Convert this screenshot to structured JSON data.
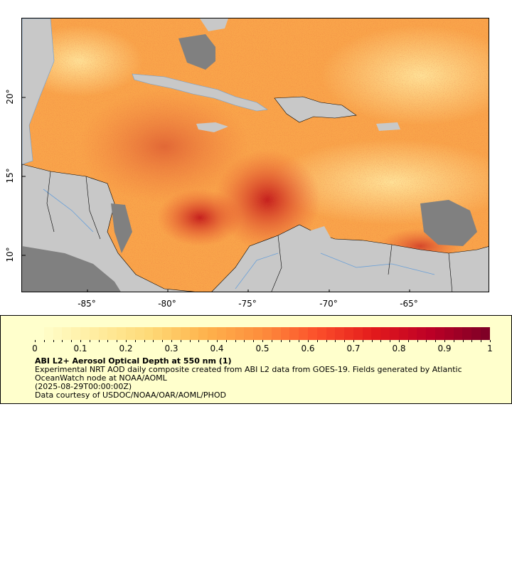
{
  "map": {
    "x_ticks": [
      "-85°",
      "-80°",
      "-75°",
      "-70°",
      "-65°"
    ],
    "y_ticks": [
      "20°",
      "15°",
      "10°"
    ],
    "colors": {
      "land": "#c8c8c8",
      "no_data": "#808080",
      "rivers": "#6aa0d8",
      "borders": "#000000"
    }
  },
  "legend": {
    "ticks": [
      "0",
      "0.1",
      "0.2",
      "0.3",
      "0.4",
      "0.5",
      "0.6",
      "0.7",
      "0.8",
      "0.9",
      "1"
    ],
    "colormap": [
      "#ffffcc",
      "#ffeda0",
      "#fed976",
      "#feb24c",
      "#fd8d3c",
      "#fc4e2a",
      "#e31a1c",
      "#bd0026",
      "#800026"
    ],
    "title": "ABI L2+ Aerosol Optical Depth at 550 nm (1)",
    "desc_line1": "Experimental NRT AOD daily composite created from ABI L2 data from GOES-19. Fields generated by Atlantic OceanWatch node at NOAA/AOML",
    "desc_line2": "(2025-08-29T00:00:00Z)",
    "desc_line3": "Data courtesy of USDOC/NOAA/OAR/AOML/PHOD"
  }
}
